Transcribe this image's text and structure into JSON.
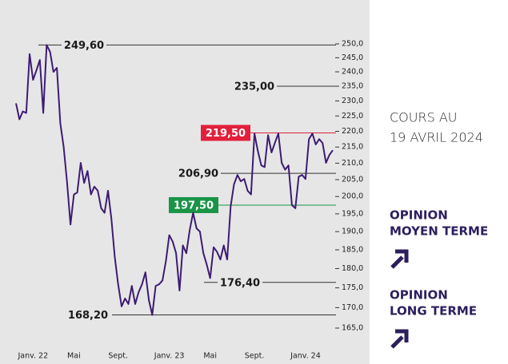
{
  "chart_data": {
    "type": "line",
    "color": "#3d1c72",
    "log_scale": true,
    "categories": [
      null,
      null,
      null,
      null,
      null,
      "Janv. 22",
      null,
      null,
      null,
      null,
      null,
      null,
      null,
      null,
      null,
      null,
      null,
      "Mai",
      null,
      null,
      null,
      null,
      null,
      null,
      null,
      null,
      null,
      null,
      null,
      null,
      "Sept.",
      null,
      null,
      null,
      null,
      null,
      null,
      null,
      null,
      null,
      null,
      null,
      null,
      null,
      null,
      "Janv. 23",
      null,
      null,
      null,
      null,
      null,
      null,
      null,
      null,
      null,
      null,
      null,
      "Mai",
      null,
      null,
      null,
      null,
      null,
      null,
      null,
      null,
      null,
      null,
      null,
      null,
      "Sept.",
      null,
      null,
      null,
      null,
      null,
      null,
      null,
      null,
      null,
      null,
      null,
      null,
      null,
      null,
      "Janv. 24",
      null,
      null,
      null,
      null,
      null,
      null,
      null,
      null
    ],
    "values": [
      229.2,
      223.9,
      226.5,
      226.0,
      246.3,
      237.2,
      240.5,
      244.2,
      226.0,
      249.6,
      247.1,
      240.0,
      241.4,
      222.6,
      215.0,
      204.0,
      192.0,
      200.6,
      201.2,
      210.1,
      204.0,
      207.6,
      200.6,
      202.9,
      201.7,
      196.6,
      195.3,
      201.7,
      193.7,
      183.0,
      175.9,
      170.3,
      172.3,
      170.9,
      175.5,
      170.9,
      173.9,
      175.9,
      179.0,
      171.9,
      168.2,
      175.5,
      175.9,
      176.9,
      182.0,
      189.0,
      187.2,
      184.1,
      174.3,
      186.2,
      184.1,
      190.5,
      195.3,
      190.9,
      190.0,
      184.1,
      181.0,
      177.5,
      185.7,
      184.5,
      182.4,
      186.2,
      182.4,
      197.1,
      203.6,
      206.4,
      204.5,
      205.2,
      201.7,
      200.6,
      219.3,
      213.8,
      209.3,
      208.8,
      218.8,
      213.3,
      216.3,
      219.3,
      210.1,
      208.0,
      209.3,
      197.5,
      196.6,
      205.9,
      206.4,
      205.2,
      217.5,
      219.3,
      215.8,
      217.5,
      216.3,
      210.1,
      212.5,
      214.0
    ],
    "ylim": [
      165,
      250
    ],
    "yticks": [
      {
        "value": 250,
        "label": "250,0"
      },
      {
        "value": 245,
        "label": "245,0"
      },
      {
        "value": 240,
        "label": "240,0"
      },
      {
        "value": 235,
        "label": "235,0"
      },
      {
        "value": 230,
        "label": "230,0"
      },
      {
        "value": 225,
        "label": "225,0"
      },
      {
        "value": 220,
        "label": "220,0"
      },
      {
        "value": 215,
        "label": "215,0"
      },
      {
        "value": 210,
        "label": "210,0"
      },
      {
        "value": 205,
        "label": "205,0"
      },
      {
        "value": 200,
        "label": "200,0"
      },
      {
        "value": 195,
        "label": "195,0"
      },
      {
        "value": 190,
        "label": "190,0"
      },
      {
        "value": 185,
        "label": "185,0"
      },
      {
        "value": 180,
        "label": "180,0"
      },
      {
        "value": 175,
        "label": "175,0"
      },
      {
        "value": 170,
        "label": "170,0"
      },
      {
        "value": 165,
        "label": "165,0"
      }
    ],
    "annotations": [
      {
        "value": 249.6,
        "label": "249,60"
      },
      {
        "value": 235,
        "label": "235,00"
      },
      {
        "value": 219.5,
        "label": "219,50",
        "color": "#e2203c"
      },
      {
        "value": 206.9,
        "label": "206,90"
      },
      {
        "value": 197.5,
        "label": "197,50",
        "color": "#1a9447"
      },
      {
        "value": 176.4,
        "label": "176,40"
      },
      {
        "value": 168.2,
        "label": "168,20"
      }
    ]
  },
  "side": {
    "date_title": "COURS AU",
    "date": "19 AVRIL 2024",
    "opinions": [
      {
        "line1": "OPINION",
        "line2": "MOYEN TERME"
      },
      {
        "line1": "OPINION",
        "line2": "LONG TERME"
      }
    ]
  }
}
